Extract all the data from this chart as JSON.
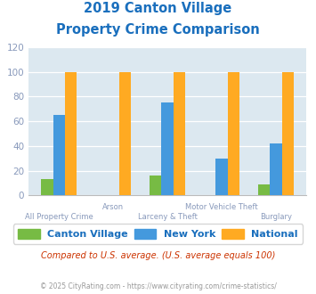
{
  "title_line1": "2019 Canton Village",
  "title_line2": "Property Crime Comparison",
  "title_color": "#1a6fbd",
  "categories": [
    "All Property Crime",
    "Arson",
    "Larceny & Theft",
    "Motor Vehicle Theft",
    "Burglary"
  ],
  "canton_village": [
    13,
    0,
    16,
    0,
    9
  ],
  "new_york": [
    65,
    0,
    75,
    30,
    42
  ],
  "national": [
    100,
    100,
    100,
    100,
    100
  ],
  "canton_color": "#77bb44",
  "ny_color": "#4499dd",
  "national_color": "#ffaa22",
  "ylim": [
    0,
    120
  ],
  "yticks": [
    0,
    20,
    40,
    60,
    80,
    100,
    120
  ],
  "background_color": "#dce8f0",
  "legend_labels": [
    "Canton Village",
    "New York",
    "National"
  ],
  "note_text": "Compared to U.S. average. (U.S. average equals 100)",
  "note_color": "#cc3300",
  "footer_text": "© 2025 CityRating.com - https://www.cityrating.com/crime-statistics/",
  "footer_color": "#999999",
  "label_color": "#8899bb",
  "tick_color": "#8899bb",
  "legend_text_color": "#1a6fbd",
  "bar_width": 0.22,
  "title_fontsize": 10.5,
  "legend_fontsize": 8.0,
  "note_fontsize": 7.0,
  "footer_fontsize": 5.5,
  "ytick_fontsize": 7.5,
  "xlabel_fontsize": 6.0
}
